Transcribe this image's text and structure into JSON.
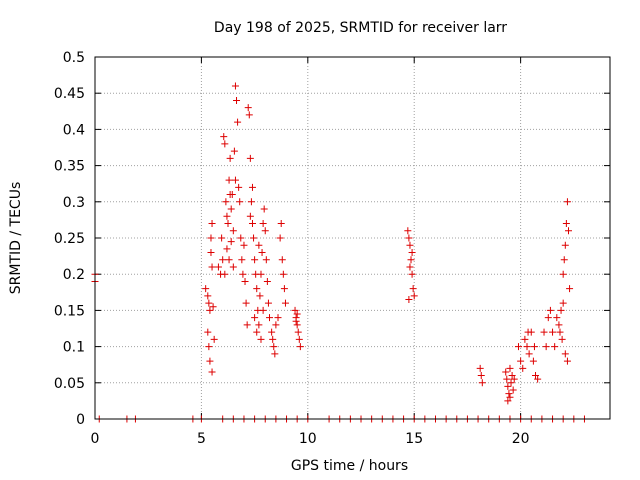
{
  "chart_data": {
    "type": "scatter",
    "title": "Day 198 of 2025, SRMTID for receiver larr",
    "xlabel": "GPS time / hours",
    "ylabel": "SRMTID / TECUs",
    "xlim": [
      0,
      24.2
    ],
    "ylim": [
      0,
      0.5
    ],
    "grid": true,
    "marker": "+",
    "color": "#dd0000",
    "x_ticks": [
      0,
      5,
      10,
      15,
      20
    ],
    "x_tick_labels": [
      "0",
      "5",
      "10",
      "15",
      "20"
    ],
    "y_ticks": [
      0,
      0.05,
      0.1,
      0.15,
      0.2,
      0.25,
      0.3,
      0.35,
      0.4,
      0.45,
      0.5
    ],
    "y_tick_labels": [
      "0",
      "0.05",
      "0.1",
      "0.15",
      "0.2",
      "0.25",
      "0.3",
      "0.35",
      "0.4",
      "0.45",
      "0.5"
    ],
    "series": [
      {
        "name": "SRMTID",
        "points": [
          [
            0.0,
            0.2
          ],
          [
            0.0,
            0.19
          ],
          [
            5.2,
            0.18
          ],
          [
            5.3,
            0.17
          ],
          [
            5.35,
            0.16
          ],
          [
            5.4,
            0.15
          ],
          [
            5.45,
            0.25
          ],
          [
            5.5,
            0.27
          ],
          [
            5.3,
            0.12
          ],
          [
            5.35,
            0.1
          ],
          [
            5.4,
            0.08
          ],
          [
            5.5,
            0.065
          ],
          [
            5.5,
            0.21
          ],
          [
            5.45,
            0.23
          ],
          [
            5.6,
            0.11
          ],
          [
            5.55,
            0.155
          ],
          [
            5.8,
            0.21
          ],
          [
            5.9,
            0.2
          ],
          [
            5.95,
            0.25
          ],
          [
            6.0,
            0.22
          ],
          [
            6.05,
            0.39
          ],
          [
            6.1,
            0.38
          ],
          [
            6.15,
            0.3
          ],
          [
            6.2,
            0.28
          ],
          [
            6.25,
            0.27
          ],
          [
            6.3,
            0.33
          ],
          [
            6.35,
            0.36
          ],
          [
            6.4,
            0.29
          ],
          [
            6.45,
            0.31
          ],
          [
            6.5,
            0.26
          ],
          [
            6.55,
            0.37
          ],
          [
            6.6,
            0.46
          ],
          [
            6.65,
            0.44
          ],
          [
            6.7,
            0.41
          ],
          [
            6.75,
            0.32
          ],
          [
            6.8,
            0.3
          ],
          [
            6.85,
            0.25
          ],
          [
            6.9,
            0.22
          ],
          [
            6.95,
            0.2
          ],
          [
            7.0,
            0.24
          ],
          [
            7.05,
            0.19
          ],
          [
            7.1,
            0.16
          ],
          [
            7.15,
            0.13
          ],
          [
            6.2,
            0.235
          ],
          [
            6.4,
            0.245
          ],
          [
            6.1,
            0.2
          ],
          [
            6.3,
            0.22
          ],
          [
            6.5,
            0.21
          ],
          [
            6.35,
            0.31
          ],
          [
            6.6,
            0.33
          ],
          [
            7.2,
            0.43
          ],
          [
            7.25,
            0.42
          ],
          [
            7.3,
            0.36
          ],
          [
            7.35,
            0.3
          ],
          [
            7.4,
            0.27
          ],
          [
            7.45,
            0.25
          ],
          [
            7.5,
            0.22
          ],
          [
            7.55,
            0.2
          ],
          [
            7.6,
            0.18
          ],
          [
            7.65,
            0.15
          ],
          [
            7.7,
            0.13
          ],
          [
            7.75,
            0.17
          ],
          [
            7.8,
            0.2
          ],
          [
            7.85,
            0.23
          ],
          [
            7.9,
            0.27
          ],
          [
            7.95,
            0.29
          ],
          [
            8.0,
            0.26
          ],
          [
            8.05,
            0.22
          ],
          [
            8.1,
            0.19
          ],
          [
            8.15,
            0.16
          ],
          [
            8.2,
            0.14
          ],
          [
            7.4,
            0.32
          ],
          [
            7.5,
            0.14
          ],
          [
            7.6,
            0.12
          ],
          [
            7.7,
            0.24
          ],
          [
            7.8,
            0.11
          ],
          [
            7.3,
            0.28
          ],
          [
            7.9,
            0.15
          ],
          [
            8.3,
            0.12
          ],
          [
            8.35,
            0.11
          ],
          [
            8.4,
            0.1
          ],
          [
            8.45,
            0.09
          ],
          [
            8.5,
            0.13
          ],
          [
            8.7,
            0.25
          ],
          [
            8.75,
            0.27
          ],
          [
            8.8,
            0.22
          ],
          [
            8.85,
            0.2
          ],
          [
            8.9,
            0.18
          ],
          [
            8.95,
            0.16
          ],
          [
            8.6,
            0.14
          ],
          [
            9.4,
            0.15
          ],
          [
            9.45,
            0.14
          ],
          [
            9.5,
            0.13
          ],
          [
            9.55,
            0.12
          ],
          [
            9.6,
            0.11
          ],
          [
            9.65,
            0.1
          ],
          [
            9.5,
            0.145
          ],
          [
            9.45,
            0.135
          ],
          [
            14.7,
            0.26
          ],
          [
            14.75,
            0.25
          ],
          [
            14.8,
            0.24
          ],
          [
            14.85,
            0.22
          ],
          [
            14.9,
            0.2
          ],
          [
            14.95,
            0.18
          ],
          [
            15.0,
            0.17
          ],
          [
            14.8,
            0.21
          ],
          [
            14.9,
            0.23
          ],
          [
            14.75,
            0.165
          ],
          [
            18.1,
            0.07
          ],
          [
            18.15,
            0.06
          ],
          [
            18.2,
            0.05
          ],
          [
            19.3,
            0.065
          ],
          [
            19.35,
            0.055
          ],
          [
            19.4,
            0.045
          ],
          [
            19.45,
            0.035
          ],
          [
            19.5,
            0.03
          ],
          [
            19.55,
            0.05
          ],
          [
            19.6,
            0.06
          ],
          [
            19.65,
            0.04
          ],
          [
            19.4,
            0.025
          ],
          [
            19.5,
            0.07
          ],
          [
            19.7,
            0.055
          ],
          [
            19.9,
            0.1
          ],
          [
            20.0,
            0.08
          ],
          [
            20.1,
            0.07
          ],
          [
            20.2,
            0.11
          ],
          [
            20.3,
            0.1
          ],
          [
            20.4,
            0.09
          ],
          [
            20.5,
            0.12
          ],
          [
            20.6,
            0.08
          ],
          [
            20.7,
            0.06
          ],
          [
            20.8,
            0.055
          ],
          [
            20.35,
            0.12
          ],
          [
            20.65,
            0.1
          ],
          [
            21.1,
            0.12
          ],
          [
            21.2,
            0.1
          ],
          [
            21.3,
            0.14
          ],
          [
            21.4,
            0.15
          ],
          [
            21.5,
            0.12
          ],
          [
            21.6,
            0.1
          ],
          [
            21.7,
            0.14
          ],
          [
            21.8,
            0.13
          ],
          [
            21.9,
            0.15
          ],
          [
            22.0,
            0.2
          ],
          [
            22.05,
            0.22
          ],
          [
            22.1,
            0.24
          ],
          [
            22.15,
            0.27
          ],
          [
            22.2,
            0.3
          ],
          [
            22.25,
            0.26
          ],
          [
            22.3,
            0.18
          ],
          [
            22.1,
            0.09
          ],
          [
            22.2,
            0.08
          ],
          [
            21.95,
            0.11
          ],
          [
            22.0,
            0.16
          ],
          [
            21.85,
            0.12
          ],
          [
            0.2,
            0.0
          ],
          [
            1.5,
            0.0
          ],
          [
            1.9,
            0.0
          ],
          [
            4.6,
            0.0
          ],
          [
            5.0,
            0.0
          ],
          [
            6.0,
            0.0
          ],
          [
            6.5,
            0.0
          ],
          [
            7.0,
            0.0
          ],
          [
            7.5,
            0.0
          ],
          [
            8.0,
            0.0
          ],
          [
            8.5,
            0.0
          ],
          [
            9.0,
            0.0
          ],
          [
            9.5,
            0.0
          ],
          [
            10.0,
            0.0
          ],
          [
            11.0,
            0.0
          ],
          [
            11.5,
            0.0
          ],
          [
            12.0,
            0.0
          ],
          [
            12.5,
            0.0
          ],
          [
            13.0,
            0.0
          ],
          [
            13.5,
            0.0
          ],
          [
            14.0,
            0.0
          ],
          [
            14.5,
            0.0
          ],
          [
            15.0,
            0.0
          ],
          [
            15.5,
            0.0
          ],
          [
            16.0,
            0.0
          ],
          [
            16.5,
            0.0
          ],
          [
            17.0,
            0.0
          ],
          [
            17.5,
            0.0
          ],
          [
            18.0,
            0.0
          ],
          [
            18.5,
            0.0
          ],
          [
            19.0,
            0.0
          ],
          [
            19.5,
            0.0
          ],
          [
            20.0,
            0.0
          ],
          [
            20.5,
            0.0
          ],
          [
            21.0,
            0.0
          ],
          [
            21.5,
            0.0
          ],
          [
            22.0,
            0.0
          ],
          [
            22.5,
            0.0
          ],
          [
            23.0,
            0.0
          ]
        ]
      }
    ]
  }
}
